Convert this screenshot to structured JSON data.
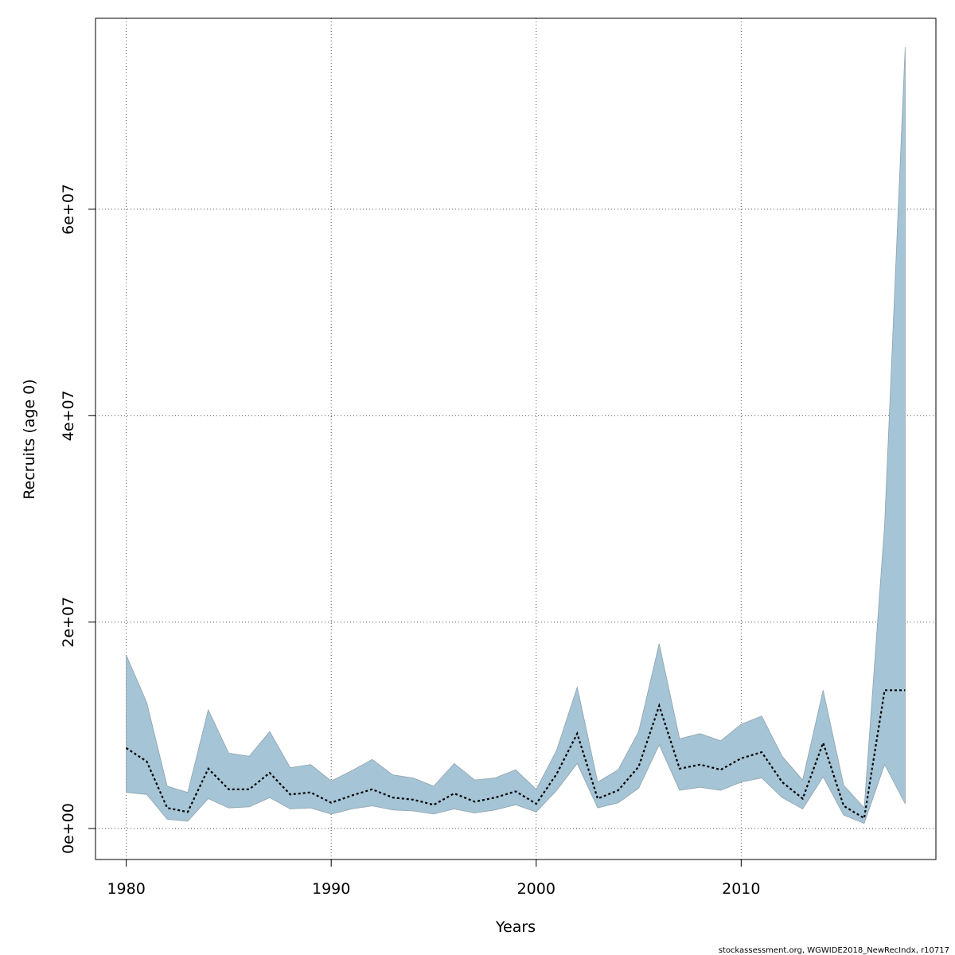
{
  "chart_data": {
    "type": "area",
    "xlabel": "Years",
    "ylabel": "Recruits (age 0)",
    "xlim": [
      1978.5,
      2019.5
    ],
    "ylim": [
      -3000000,
      78500000
    ],
    "x_ticks": [
      1980,
      1990,
      2000,
      2010
    ],
    "x_tick_labels": [
      "1980",
      "1990",
      "2000",
      "2010"
    ],
    "y_ticks": [
      0,
      20000000,
      40000000,
      60000000
    ],
    "y_tick_labels": [
      "0e+00",
      "2e+07",
      "4e+07",
      "6e+07"
    ],
    "grid": true,
    "band_color": "#a5c4d5",
    "line_color": "#000000",
    "x": [
      1980,
      1981,
      1982,
      1983,
      1984,
      1985,
      1986,
      1987,
      1988,
      1989,
      1990,
      1991,
      1992,
      1993,
      1994,
      1995,
      1996,
      1997,
      1998,
      1999,
      2000,
      2001,
      2002,
      2003,
      2004,
      2005,
      2006,
      2007,
      2008,
      2009,
      2010,
      2011,
      2012,
      2013,
      2014,
      2015,
      2016,
      2017,
      2018
    ],
    "series": [
      {
        "role": "upper",
        "values": [
          16800000,
          12200000,
          4100000,
          3500000,
          11500000,
          7300000,
          7000000,
          9400000,
          5900000,
          6200000,
          4600000,
          5600000,
          6700000,
          5200000,
          4900000,
          4100000,
          6300000,
          4700000,
          4900000,
          5700000,
          3800000,
          7600000,
          13700000,
          4500000,
          5700000,
          9400000,
          17900000,
          8700000,
          9200000,
          8500000,
          10100000,
          10900000,
          7000000,
          4700000,
          13400000,
          4200000,
          2000000,
          29500000,
          75700000
        ]
      },
      {
        "role": "median",
        "values": [
          7800000,
          6500000,
          2000000,
          1600000,
          5800000,
          3800000,
          3800000,
          5400000,
          3300000,
          3500000,
          2500000,
          3200000,
          3800000,
          3000000,
          2800000,
          2300000,
          3400000,
          2600000,
          3000000,
          3600000,
          2400000,
          5300000,
          9200000,
          2900000,
          3700000,
          6000000,
          11900000,
          5800000,
          6200000,
          5700000,
          6800000,
          7400000,
          4500000,
          2900000,
          8300000,
          2200000,
          1000000,
          13400000,
          13400000
        ]
      },
      {
        "role": "lower",
        "values": [
          3500000,
          3300000,
          900000,
          700000,
          2900000,
          2000000,
          2100000,
          3000000,
          1900000,
          2000000,
          1400000,
          1900000,
          2200000,
          1800000,
          1700000,
          1400000,
          1900000,
          1500000,
          1800000,
          2300000,
          1600000,
          3700000,
          6300000,
          2000000,
          2500000,
          3900000,
          8100000,
          3700000,
          4000000,
          3700000,
          4500000,
          4900000,
          3000000,
          1900000,
          5000000,
          1300000,
          500000,
          6200000,
          2400000
        ]
      }
    ]
  },
  "caption": "stockassessment.org, WGWIDE2018_NewRecIndx, r10717"
}
